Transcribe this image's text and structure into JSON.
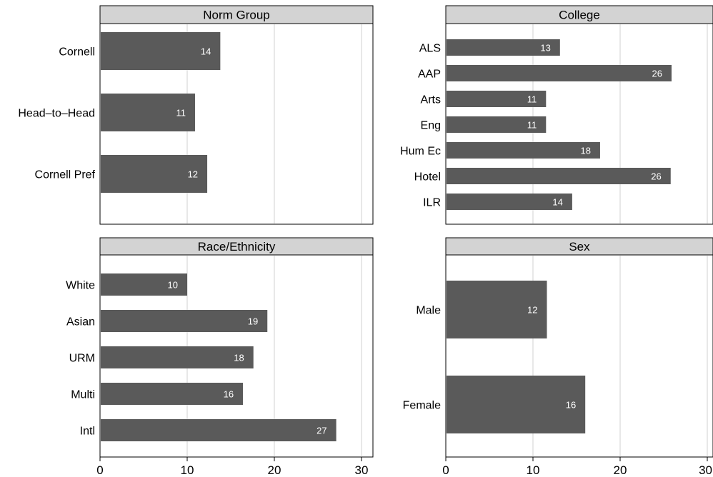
{
  "chart_data": [
    {
      "type": "bar",
      "orientation": "horizontal",
      "title": "Norm Group",
      "categories": [
        "Cornell",
        "Head–to–Head",
        "Cornell Pref"
      ],
      "values": [
        13.8,
        10.9,
        12.3
      ],
      "data_labels": [
        "14",
        "11",
        "12"
      ],
      "xlim": [
        0,
        31
      ],
      "xticks": [
        "0",
        "10",
        "20",
        "30"
      ],
      "grid": true,
      "color": "#5a5a5a"
    },
    {
      "type": "bar",
      "orientation": "horizontal",
      "title": "College",
      "categories": [
        "ALS",
        "AAP",
        "Arts",
        "Eng",
        "Hum Ec",
        "Hotel",
        "ILR"
      ],
      "values": [
        13.1,
        25.9,
        11.5,
        11.5,
        17.7,
        25.8,
        14.5
      ],
      "data_labels": [
        "13",
        "26",
        "11",
        "11",
        "18",
        "26",
        "14"
      ],
      "xlim": [
        0,
        31
      ],
      "xticks": [
        "0",
        "10",
        "20",
        "30"
      ],
      "grid": true,
      "color": "#5a5a5a"
    },
    {
      "type": "bar",
      "orientation": "horizontal",
      "title": "Race/Ethnicity",
      "categories": [
        "White",
        "Asian",
        "URM",
        "Multi",
        "Intl"
      ],
      "values": [
        10.0,
        19.2,
        17.6,
        16.4,
        27.1
      ],
      "data_labels": [
        "10",
        "19",
        "18",
        "16",
        "27"
      ],
      "xlim": [
        0,
        31
      ],
      "xticks": [
        "0",
        "10",
        "20",
        "30"
      ],
      "grid": true,
      "color": "#5a5a5a"
    },
    {
      "type": "bar",
      "orientation": "horizontal",
      "title": "Sex",
      "categories": [
        "Male",
        "Female"
      ],
      "values": [
        11.6,
        16.0
      ],
      "data_labels": [
        "12",
        "16"
      ],
      "xlim": [
        0,
        31
      ],
      "xticks": [
        "0",
        "10",
        "20",
        "30"
      ],
      "grid": true,
      "color": "#5a5a5a"
    }
  ]
}
